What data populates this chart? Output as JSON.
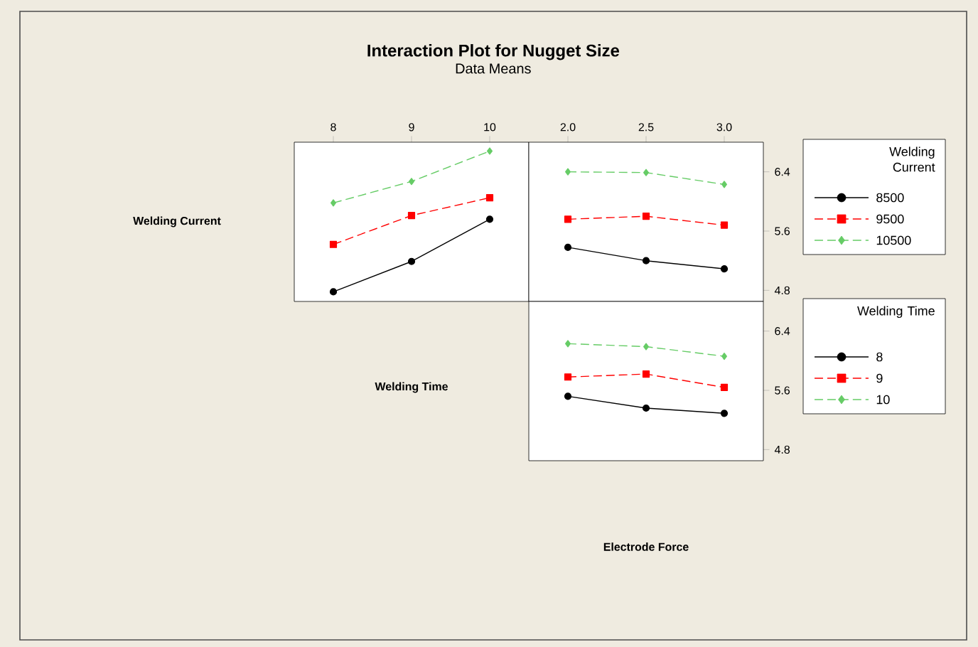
{
  "chart_data": [
    {
      "type": "line",
      "title": "Interaction Plot for Nugget Size",
      "subtitle": "Data Means",
      "xlabel": "Welding Time",
      "ylabel": "Welding Current",
      "x": [
        8,
        9,
        10
      ],
      "xlim": [
        7.5,
        10.5
      ],
      "xticks": [
        8,
        9,
        10
      ],
      "ylim": [
        4.65,
        6.8
      ],
      "yticks": [
        4.8,
        5.6,
        6.4
      ],
      "tick_labels": "x",
      "series": [
        {
          "color": "#000000",
          "marker": "circle",
          "line_style": "solid",
          "values": [
            4.78,
            5.19,
            5.76
          ]
        },
        {
          "color": "#ff0000",
          "marker": "square",
          "line_style": "dashed",
          "values": [
            5.42,
            5.81,
            6.05
          ]
        },
        {
          "color": "#66cc66",
          "marker": "diamond",
          "line_style": "dashed",
          "values": [
            5.98,
            6.27,
            6.68
          ]
        }
      ]
    },
    {
      "type": "line",
      "legend": "right",
      "legend_title": "Welding Current",
      "x": [
        2.0,
        2.5,
        3.0
      ],
      "xlim": [
        1.75,
        3.25
      ],
      "xticks": [
        {
          "value": 2.0,
          "label": "2.0"
        },
        2.5,
        {
          "value": 3.0,
          "label": "3.0"
        }
      ],
      "ylim": [
        4.65,
        6.8
      ],
      "yticks": [
        4.8,
        5.6,
        6.4
      ],
      "series": [
        {
          "name": "8500",
          "color": "#000000",
          "marker": "circle",
          "line_style": "solid",
          "values": [
            5.38,
            5.2,
            5.09
          ]
        },
        {
          "name": "9500",
          "color": "#ff0000",
          "marker": "square",
          "line_style": "dashed",
          "values": [
            5.76,
            5.8,
            5.68
          ]
        },
        {
          "name": "10500",
          "color": "#66cc66",
          "marker": "diamond",
          "line_style": "dashed",
          "values": [
            6.4,
            6.39,
            6.23
          ]
        }
      ]
    },
    {
      "type": "line",
      "xlabel": "Electrode Force",
      "legend": "right",
      "legend_title": "Welding Time",
      "x": [
        2.0,
        2.5,
        3.0
      ],
      "xlim": [
        1.75,
        3.25
      ],
      "ylim": [
        4.65,
        6.8
      ],
      "yticks": [
        4.8,
        5.6,
        6.4
      ],
      "tick_labels": "y",
      "series": [
        {
          "name": "8",
          "color": "#000000",
          "marker": "circle",
          "line_style": "solid",
          "values": [
            5.52,
            5.36,
            5.29
          ]
        },
        {
          "name": "9",
          "color": "#ff0000",
          "marker": "square",
          "line_style": "dashed",
          "values": [
            5.78,
            5.82,
            5.64
          ]
        },
        {
          "name": "10",
          "color": "#66cc66",
          "marker": "diamond",
          "line_style": "dashed",
          "values": [
            6.23,
            6.19,
            6.06
          ]
        }
      ]
    }
  ]
}
